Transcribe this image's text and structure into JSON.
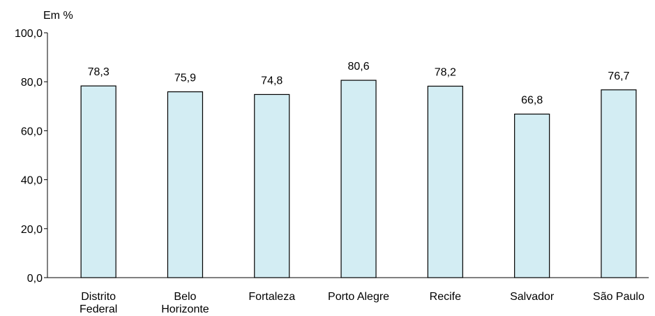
{
  "chart_data": {
    "type": "bar",
    "ylabel": "Em %",
    "categories": [
      "Distrito\nFederal",
      "Belo\nHorizonte",
      "Fortaleza",
      "Porto Alegre",
      "Recife",
      "Salvador",
      "São Paulo"
    ],
    "values": [
      78.3,
      75.9,
      74.8,
      80.6,
      78.2,
      66.8,
      76.7
    ],
    "value_labels": [
      "78,3",
      "75,9",
      "74,8",
      "80,6",
      "78,2",
      "66,8",
      "76,7"
    ],
    "color": "#d3edf3",
    "ylim": [
      0,
      100
    ],
    "yticks": [
      {
        "value": 0,
        "label": "0,0"
      },
      {
        "value": 20,
        "label": "20,0"
      },
      {
        "value": 40,
        "label": "40,0"
      },
      {
        "value": 60,
        "label": "60,0"
      },
      {
        "value": 80,
        "label": "80,0"
      },
      {
        "value": 100,
        "label": "100,0"
      }
    ],
    "grid": false
  }
}
